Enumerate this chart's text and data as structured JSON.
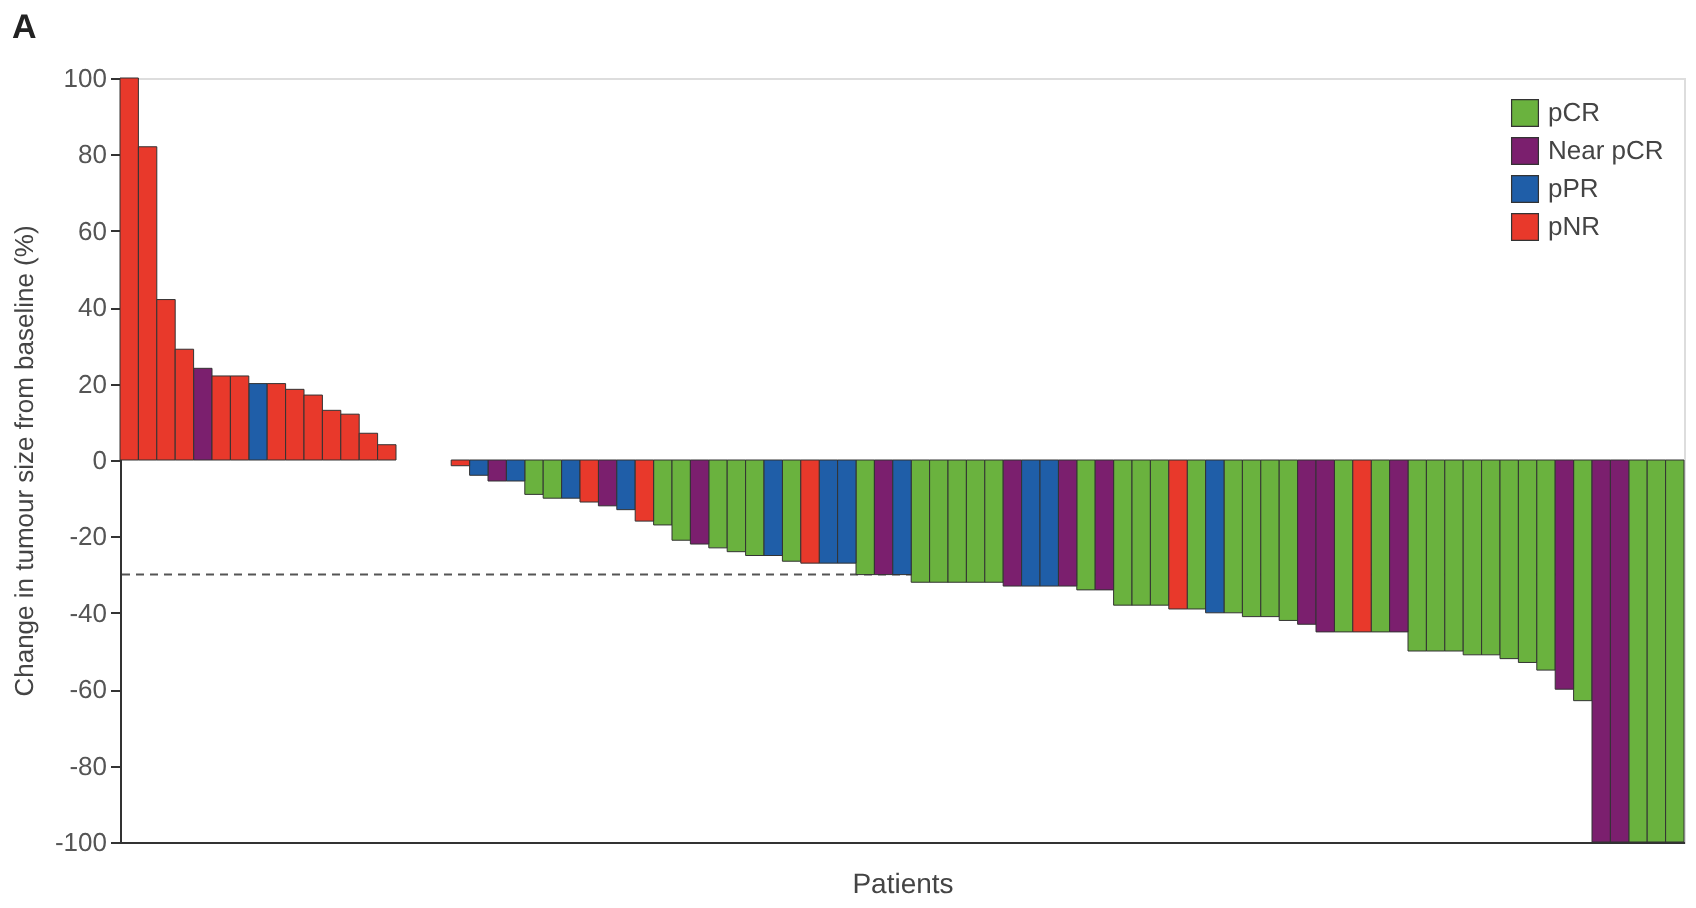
{
  "chart_data": {
    "type": "bar",
    "title": "A",
    "xlabel": "Patients",
    "ylabel": "Change in tumour size from baseline (%)",
    "categories": [
      null,
      null,
      null,
      null,
      null,
      null,
      null,
      null,
      null,
      null,
      null,
      null,
      null,
      null,
      null,
      null,
      null,
      null,
      null,
      null,
      null,
      null,
      null,
      null,
      null,
      null,
      null,
      null,
      null,
      null,
      null,
      null,
      null,
      null,
      null,
      null,
      null,
      null,
      null,
      null,
      null,
      null,
      null,
      null,
      null,
      null,
      null,
      null,
      null,
      null,
      null,
      null,
      null,
      null,
      null,
      null,
      null,
      null,
      null,
      null,
      null,
      null,
      null,
      null,
      null,
      null,
      null,
      null,
      null,
      null,
      null,
      null,
      null,
      null,
      null,
      null,
      null,
      null,
      null,
      null,
      null,
      null,
      null,
      null,
      null
    ],
    "series": [
      {
        "name": "pCR",
        "color": "#6ab23e",
        "values": [
          null,
          null,
          null,
          null,
          null,
          null,
          null,
          null,
          null,
          null,
          null,
          null,
          null,
          null,
          null,
          null,
          null,
          null,
          null,
          null,
          null,
          null,
          -9,
          -10,
          null,
          null,
          null,
          null,
          null,
          -17,
          -21,
          null,
          -23,
          -24,
          -25,
          null,
          -26.5,
          null,
          null,
          null,
          -30,
          null,
          null,
          -32,
          -32,
          -32,
          -32,
          -32,
          null,
          null,
          null,
          null,
          -34,
          null,
          -38,
          -38,
          -38,
          null,
          -39,
          null,
          -40,
          -41,
          -41,
          -42,
          null,
          null,
          -45,
          null,
          -45,
          null,
          -50,
          -50,
          -50,
          -51,
          -51,
          -52,
          -53,
          -55,
          null,
          -63,
          null,
          null,
          -100,
          -100,
          -100
        ]
      },
      {
        "name": "Near pCR",
        "color": "#7b1f6e",
        "values": [
          null,
          null,
          null,
          null,
          24,
          null,
          null,
          null,
          null,
          null,
          null,
          null,
          null,
          null,
          null,
          null,
          null,
          null,
          null,
          null,
          -5.5,
          null,
          null,
          null,
          null,
          null,
          -12,
          null,
          null,
          null,
          null,
          -22,
          null,
          null,
          null,
          null,
          null,
          null,
          null,
          null,
          null,
          -30,
          null,
          null,
          null,
          null,
          null,
          null,
          -33,
          null,
          null,
          -33,
          null,
          -34,
          null,
          null,
          null,
          null,
          null,
          null,
          null,
          null,
          null,
          null,
          -43,
          -45,
          null,
          null,
          null,
          -45,
          null,
          null,
          null,
          null,
          null,
          null,
          null,
          null,
          -60,
          null,
          -100,
          -100,
          null,
          null,
          null
        ]
      },
      {
        "name": "pPR",
        "color": "#1f5ea8",
        "values": [
          null,
          null,
          null,
          null,
          null,
          null,
          null,
          20,
          null,
          null,
          null,
          null,
          null,
          null,
          null,
          null,
          null,
          null,
          null,
          -4,
          null,
          -5.5,
          null,
          null,
          -10,
          null,
          null,
          -13,
          null,
          null,
          null,
          null,
          null,
          null,
          null,
          -25,
          null,
          null,
          -27,
          -27,
          null,
          null,
          -30,
          null,
          null,
          null,
          null,
          null,
          null,
          -33,
          -33,
          null,
          null,
          null,
          null,
          null,
          null,
          null,
          null,
          -40,
          null,
          null,
          null,
          null,
          null,
          null,
          null,
          null,
          null,
          null,
          null,
          null,
          null,
          null,
          null,
          null,
          null,
          null,
          null,
          null,
          null,
          null,
          null,
          null,
          null
        ]
      },
      {
        "name": "pNR",
        "color": "#e8392b",
        "values": [
          100,
          82,
          42,
          29,
          null,
          22,
          22,
          null,
          20,
          18.5,
          17,
          13,
          12,
          7,
          4,
          null,
          null,
          null,
          -1.5,
          null,
          null,
          null,
          null,
          null,
          null,
          -11,
          null,
          null,
          -16,
          null,
          null,
          null,
          null,
          null,
          null,
          null,
          null,
          -27,
          null,
          null,
          null,
          null,
          null,
          null,
          null,
          null,
          null,
          null,
          null,
          null,
          null,
          null,
          null,
          null,
          null,
          null,
          null,
          -39,
          null,
          null,
          null,
          null,
          null,
          null,
          null,
          null,
          null,
          -45,
          null,
          null,
          null,
          null,
          null,
          null,
          null,
          null,
          null,
          null,
          null,
          null,
          null,
          null,
          null,
          null,
          null
        ]
      }
    ],
    "ylim": [
      -100,
      100
    ],
    "yticks": [
      -100,
      -80,
      -60,
      -40,
      -20,
      0,
      20,
      40,
      60,
      80,
      100
    ],
    "ref_lines": [
      {
        "axis": "y",
        "value": -30,
        "color": "#555555",
        "line_style": "dashed"
      }
    ],
    "legend": "top right",
    "grid": false
  }
}
